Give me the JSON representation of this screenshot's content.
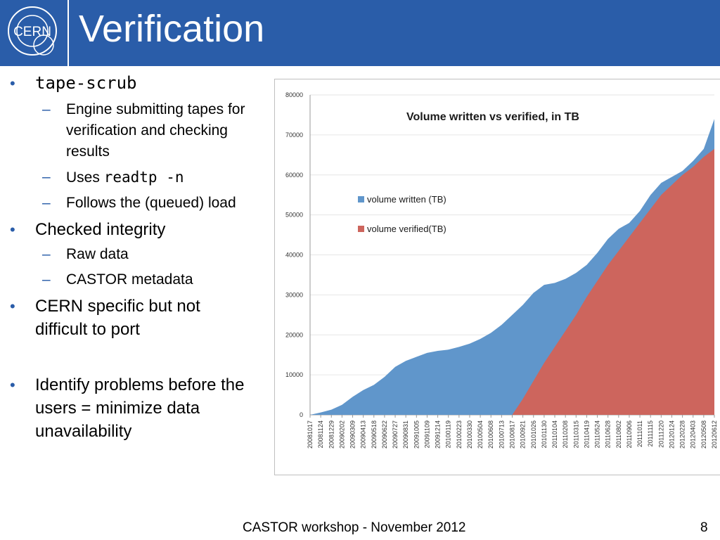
{
  "slide": {
    "title": "Verification",
    "logo_text": "CERN",
    "footer": "CASTOR workshop - November 2012",
    "page_number": "8"
  },
  "bullets": {
    "b1": "tape-scrub",
    "b1_sub1": "Engine submitting tapes for verification and checking results",
    "b1_sub2_prefix": "Uses ",
    "b1_sub2_code": "readtp -n",
    "b1_sub3": "Follows the (queued) load",
    "b2": "Checked integrity",
    "b2_sub1": "Raw data",
    "b2_sub2": "CASTOR metadata",
    "b3": "CERN specific but not difficult to port",
    "b4": "Identify problems before the users = minimize data unavailability"
  },
  "chart_data": {
    "type": "area",
    "title": "Volume written vs verified, in TB",
    "xlabel": "",
    "ylabel": "",
    "ylim": [
      0,
      80000
    ],
    "yticks": [
      0,
      10000,
      20000,
      30000,
      40000,
      50000,
      60000,
      70000,
      80000
    ],
    "legend_position": "left",
    "categories": [
      "20081017",
      "20081124",
      "20081229",
      "20090202",
      "20090309",
      "20090413",
      "20090518",
      "20090622",
      "20090727",
      "20090831",
      "20091005",
      "20091109",
      "20091214",
      "20100119",
      "20100223",
      "20100330",
      "20100504",
      "20100608",
      "20100713",
      "20100817",
      "20100921",
      "20101026",
      "20101130",
      "20110104",
      "20110208",
      "20110315",
      "20110419",
      "20110524",
      "20110628",
      "20110802",
      "20110906",
      "20111011",
      "20111115",
      "20111220",
      "20120124",
      "20120228",
      "20120403",
      "20120508",
      "20120612"
    ],
    "series": [
      {
        "name": "volume written (TB)",
        "color": "#6096cb",
        "values": [
          0,
          600,
          1300,
          2500,
          4500,
          6200,
          7500,
          9500,
          12000,
          13500,
          14500,
          15500,
          16000,
          16300,
          17000,
          17800,
          19000,
          20500,
          22500,
          25000,
          27500,
          30500,
          32500,
          33000,
          34000,
          35500,
          37500,
          40500,
          44000,
          46500,
          48000,
          51000,
          55000,
          58000,
          59500,
          61000,
          63500,
          66500,
          74000
        ]
      },
      {
        "name": "volume verified(TB)",
        "color": "#cd655d",
        "values": [
          0,
          0,
          0,
          0,
          0,
          0,
          0,
          0,
          0,
          0,
          0,
          0,
          0,
          0,
          0,
          0,
          0,
          0,
          0,
          0,
          4000,
          8500,
          13000,
          17000,
          21000,
          25000,
          29500,
          33500,
          37500,
          41000,
          44500,
          48000,
          51500,
          55000,
          57500,
          60000,
          62000,
          64500,
          66500
        ]
      }
    ]
  }
}
